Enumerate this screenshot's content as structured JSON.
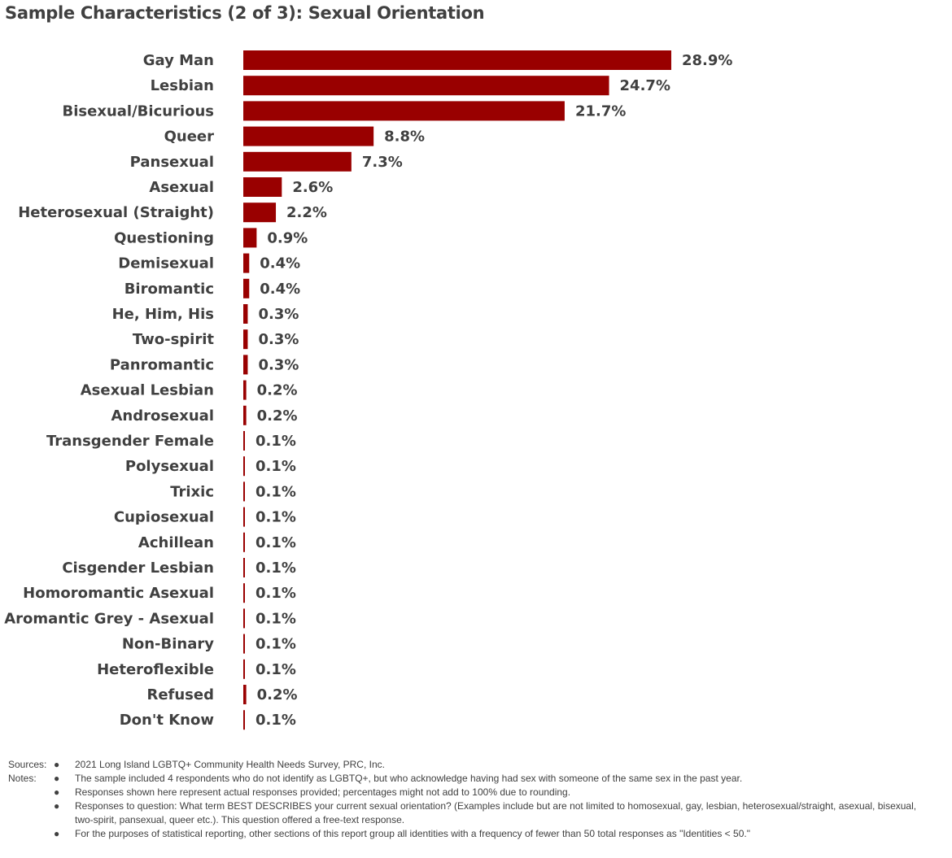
{
  "title": "Sample Characteristics (2 of 3): Sexual Orientation",
  "chart_data": {
    "type": "bar",
    "orientation": "horizontal",
    "color": "#990000",
    "categories": [
      "Gay Man",
      "Lesbian",
      "Bisexual/Bicurious",
      "Queer",
      "Pansexual",
      "Asexual",
      "Heterosexual (Straight)",
      "Questioning",
      "Demisexual",
      "Biromantic",
      "He, Him, His",
      "Two-spirit",
      "Panromantic",
      "Asexual Lesbian",
      "Androsexual",
      "Transgender Female",
      "Polysexual",
      "Trixic",
      "Cupiosexual",
      "Achillean",
      "Cisgender Lesbian",
      "Homoromantic Asexual",
      "Aromantic Grey - Asexual",
      "Non-Binary",
      "Heteroflexible",
      "Refused",
      "Don't Know"
    ],
    "values": [
      28.9,
      24.7,
      21.7,
      8.8,
      7.3,
      2.6,
      2.2,
      0.9,
      0.4,
      0.4,
      0.3,
      0.3,
      0.3,
      0.2,
      0.2,
      0.1,
      0.1,
      0.1,
      0.1,
      0.1,
      0.1,
      0.1,
      0.1,
      0.1,
      0.1,
      0.2,
      0.1
    ],
    "value_labels": [
      "28.9%",
      "24.7%",
      "21.7%",
      "8.8%",
      "7.3%",
      "2.6%",
      "2.2%",
      "0.9%",
      "0.4%",
      "0.4%",
      "0.3%",
      "0.3%",
      "0.3%",
      "0.2%",
      "0.2%",
      "0.1%",
      "0.1%",
      "0.1%",
      "0.1%",
      "0.1%",
      "0.1%",
      "0.1%",
      "0.1%",
      "0.1%",
      "0.1%",
      "0.2%",
      "0.1%"
    ],
    "xlim": [
      0,
      30
    ],
    "grid": false,
    "legend": false
  },
  "footnotes": {
    "sources_label": "Sources:",
    "notes_label": "Notes:",
    "bullet": "●",
    "sources": [
      "2021 Long Island LGBTQ+ Community Health Needs Survey, PRC, Inc."
    ],
    "notes": [
      "The sample included 4 respondents who do not identify as LGBTQ+, but who acknowledge having had sex with someone of the same sex in the past year.",
      "Responses shown here represent actual responses provided; percentages might not add to 100% due to rounding.",
      "Responses to question: What term BEST DESCRIBES your current sexual orientation? (Examples include but are not limited to homosexual, gay, lesbian, heterosexual/straight, asexual, bisexual, two-spirit, pansexual, queer etc.). This question offered a free-text response.",
      "For the purposes of statistical reporting, other sections of this report group all identities with a frequency of fewer than 50 total responses as \"Identities < 50.\""
    ]
  }
}
